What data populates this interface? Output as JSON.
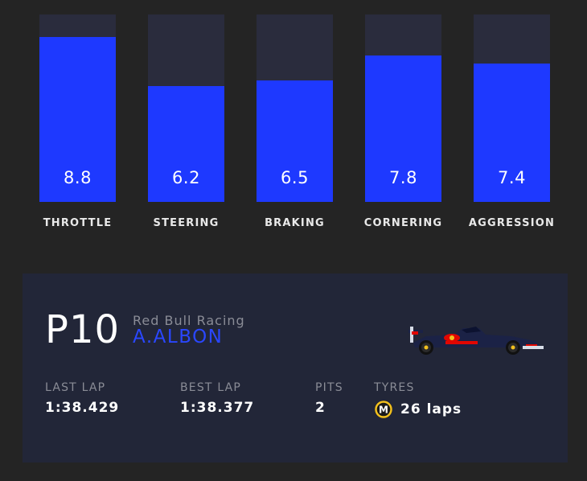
{
  "chart_data": {
    "type": "bar",
    "categories": [
      "THROTTLE",
      "STEERING",
      "BRAKING",
      "CORNERING",
      "AGGRESSION"
    ],
    "values": [
      8.8,
      6.2,
      6.5,
      7.8,
      7.4
    ],
    "value_labels": [
      "8.8",
      "6.2",
      "6.5",
      "7.8",
      "7.4"
    ],
    "ylim": [
      0,
      10
    ],
    "title": "",
    "xlabel": "",
    "ylabel": ""
  },
  "colors": {
    "background": "#242424",
    "bar_track": "#2a2c3d",
    "bar_fill": "#1e39ff",
    "card": "#222638",
    "driver_accent": "#2a47ff",
    "tyre_medium": "#f2c01e"
  },
  "driver_card": {
    "position": "P10",
    "team": "Red Bull Racing",
    "driver": "A.ALBON",
    "car_icon": "f1-car-icon",
    "stats": {
      "last_lap_label": "LAST LAP",
      "last_lap_value": "1:38.429",
      "best_lap_label": "BEST LAP",
      "best_lap_value": "1:38.377",
      "pits_label": "PITS",
      "pits_value": "2",
      "tyres_label": "TYRES",
      "tyre_compound": "M",
      "tyre_laps": "26 laps"
    }
  }
}
